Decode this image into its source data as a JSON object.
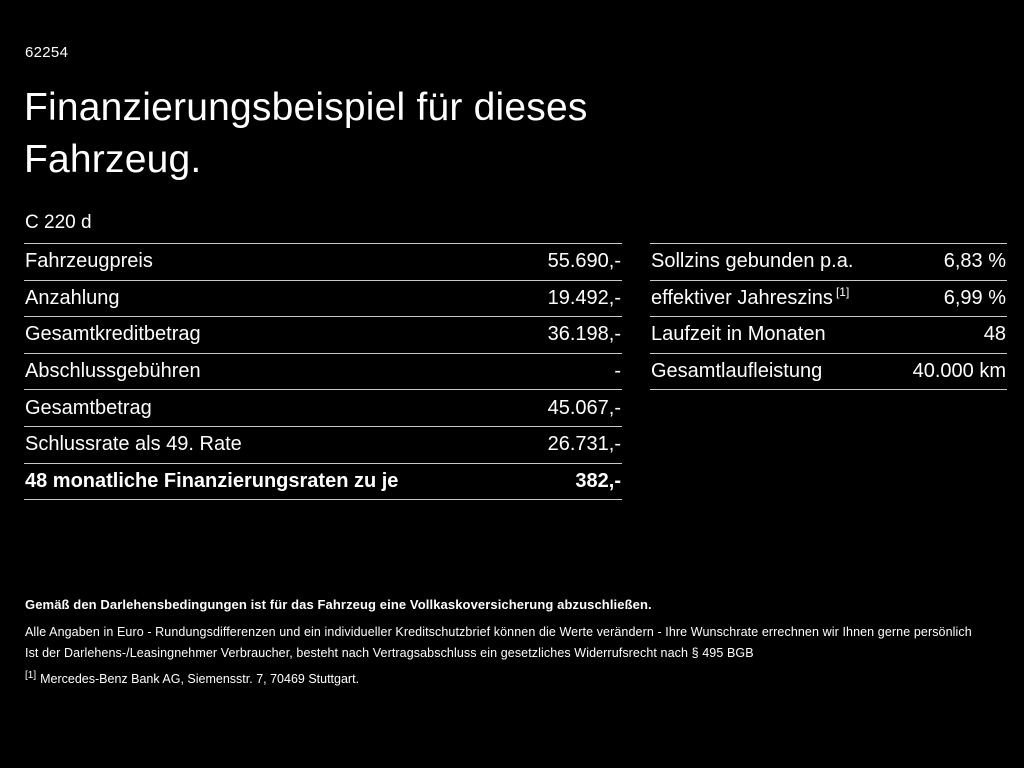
{
  "header": {
    "doc_number": "62254",
    "title_line1": "Finanzierungsbeispiel für dieses",
    "title_line2": "Fahrzeug.",
    "model": "C 220 d"
  },
  "left_table": {
    "rows": [
      {
        "label": "Fahrzeugpreis",
        "value": "55.690,-"
      },
      {
        "label": "Anzahlung",
        "value": "19.492,-"
      },
      {
        "label": "Gesamtkreditbetrag",
        "value": "36.198,-"
      },
      {
        "label": "Abschlussgebühren",
        "value": "-"
      },
      {
        "label": "Gesamtbetrag",
        "value": "45.067,-"
      },
      {
        "label": "Schlussrate als 49. Rate",
        "value": "26.731,-"
      },
      {
        "label": "48 monatliche Finanzierungsraten zu je",
        "value": "382,-"
      }
    ]
  },
  "right_table": {
    "rows": [
      {
        "label": "Sollzins gebunden p.a.",
        "value": "6,83 %"
      },
      {
        "label": "effektiver Jahreszins",
        "sup": "[1]",
        "value": "6,99 %"
      },
      {
        "label": "Laufzeit in Monaten",
        "value": "48"
      },
      {
        "label": "Gesamtlaufleistung",
        "value": "40.000 km"
      }
    ]
  },
  "footer": {
    "insurance_note": "Gemäß den Darlehensbedingungen ist für das Fahrzeug eine Vollkaskoversicherung abzuschließen.",
    "disclaimer_line1": "Alle Angaben in Euro - Rundungsdifferenzen und ein individueller Kreditschutzbrief können die Werte verändern - Ihre Wunschrate errechnen wir Ihnen gerne persönlich",
    "disclaimer_line2": "Ist der Darlehens-/Leasingnehmer Verbraucher, besteht nach Vertragsabschluss ein gesetzliches Widerrufsrecht nach § 495 BGB",
    "ref_sup": "[1]",
    "ref_text": "Mercedes-Benz Bank AG, Siemensstr. 7, 70469 Stuttgart."
  },
  "colors": {
    "background": "#000000",
    "text": "#ffffff",
    "divider": "#c9c9c9"
  }
}
